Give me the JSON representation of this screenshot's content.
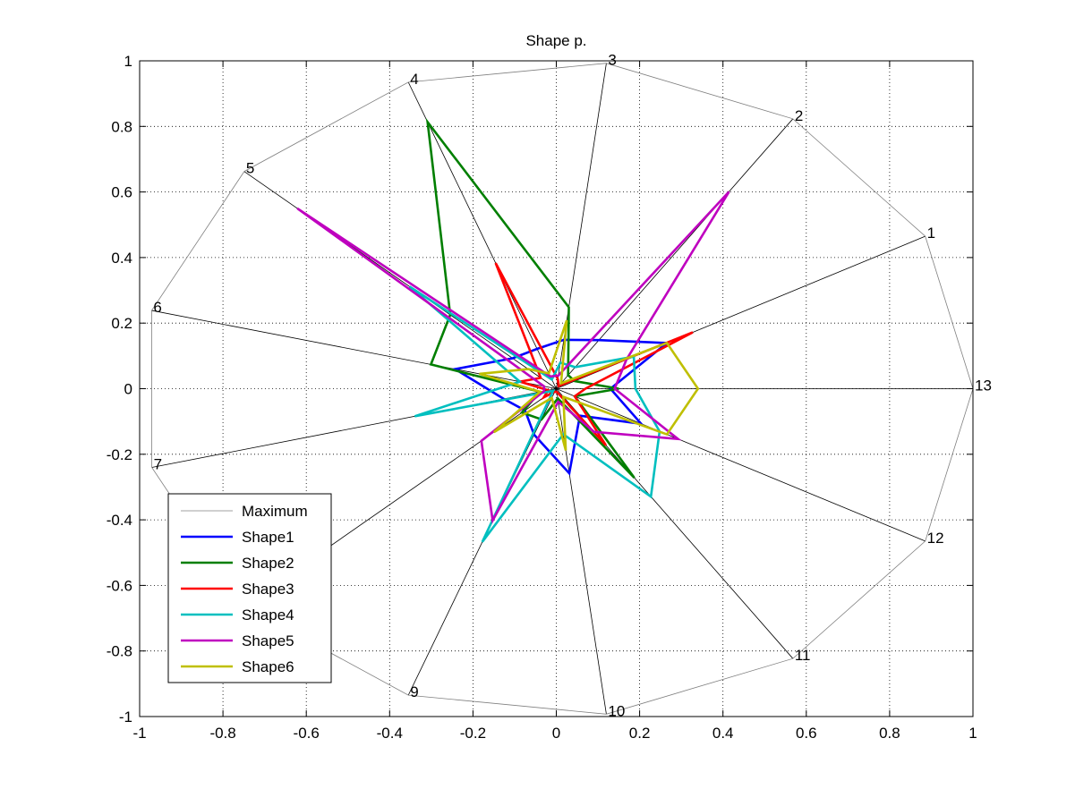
{
  "chart_data": {
    "type": "line",
    "subtype": "radar",
    "title": "Shape p.",
    "xlabel": "",
    "ylabel": "",
    "xlim": [
      -1,
      1
    ],
    "ylim": [
      -1,
      1
    ],
    "x_ticks": [
      -1,
      -0.8,
      -0.6,
      -0.4,
      -0.2,
      0,
      0.2,
      0.4,
      0.6,
      0.8,
      1
    ],
    "y_ticks": [
      -1,
      -0.8,
      -0.6,
      -0.4,
      -0.2,
      0,
      0.2,
      0.4,
      0.6,
      0.8,
      1
    ],
    "x_tick_labels": [
      "-1",
      "-0.8",
      "-0.6",
      "-0.4",
      "-0.2",
      "0",
      "0.2",
      "0.4",
      "0.6",
      "0.8",
      "1"
    ],
    "y_tick_labels": [
      "-1",
      "-0.8",
      "-0.6",
      "-0.4",
      "-0.2",
      "0",
      "0.2",
      "0.4",
      "0.6",
      "0.8",
      "1"
    ],
    "grid": true,
    "legend_position": "bottom-left",
    "axes_labels": [
      "1",
      "2",
      "3",
      "4",
      "5",
      "6",
      "7",
      "8",
      "9",
      "10",
      "11",
      "12",
      "13"
    ],
    "axis_angles_deg": [
      27.7,
      55.4,
      83.1,
      110.8,
      138.5,
      166.2,
      193.9,
      221.5,
      249.2,
      276.9,
      304.6,
      332.3,
      0
    ],
    "axis_label_order": [
      "13",
      "1",
      "2",
      "3",
      "4",
      "5",
      "6",
      "7",
      "8",
      "9",
      "10",
      "11",
      "12"
    ],
    "series": [
      {
        "name": "Maximum",
        "color": "#808080",
        "values": [
          1,
          1,
          1,
          1,
          1,
          1,
          1,
          1,
          1,
          1,
          1,
          1,
          1
        ]
      },
      {
        "name": "Shape1",
        "color": "#0000ff",
        "values": [
          0.3,
          0.18,
          0.15,
          0.13,
          0.14,
          0.25,
          0.13,
          0.1,
          0.15,
          0.26,
          0.1,
          0.23,
          0.13
        ]
      },
      {
        "name": "Shape2",
        "color": "#007f00",
        "values": [
          0.05,
          0.05,
          0.25,
          0.87,
          0.34,
          0.31,
          0.04,
          0.11,
          0.1,
          0.03,
          0.33,
          0.05,
          0.15
        ]
      },
      {
        "name": "Shape3",
        "color": "#ff0000",
        "values": [
          0.37,
          0.01,
          0.03,
          0.41,
          0.05,
          0.09,
          0.02,
          0.04,
          0.01,
          0.01,
          0.21,
          0.05,
          0.07
        ]
      },
      {
        "name": "Shape4",
        "color": "#00bfbf",
        "values": [
          0.21,
          0.08,
          0.08,
          0.03,
          0.47,
          0.09,
          0.35,
          0.01,
          0.5,
          0.14,
          0.4,
          0.28,
          0.19
        ]
      },
      {
        "name": "Shape5",
        "color": "#bf00bf",
        "values": [
          0.19,
          0.73,
          0.04,
          0.04,
          0.83,
          0.03,
          0.03,
          0.24,
          0.43,
          0.04,
          0.16,
          0.33,
          0.14
        ]
      },
      {
        "name": "Shape6",
        "color": "#bfbf00",
        "values": [
          0.3,
          0.02,
          0.21,
          0.05,
          0.09,
          0.19,
          0.04,
          0.2,
          0.03,
          0.19,
          0.03,
          0.3,
          0.34
        ]
      }
    ]
  }
}
